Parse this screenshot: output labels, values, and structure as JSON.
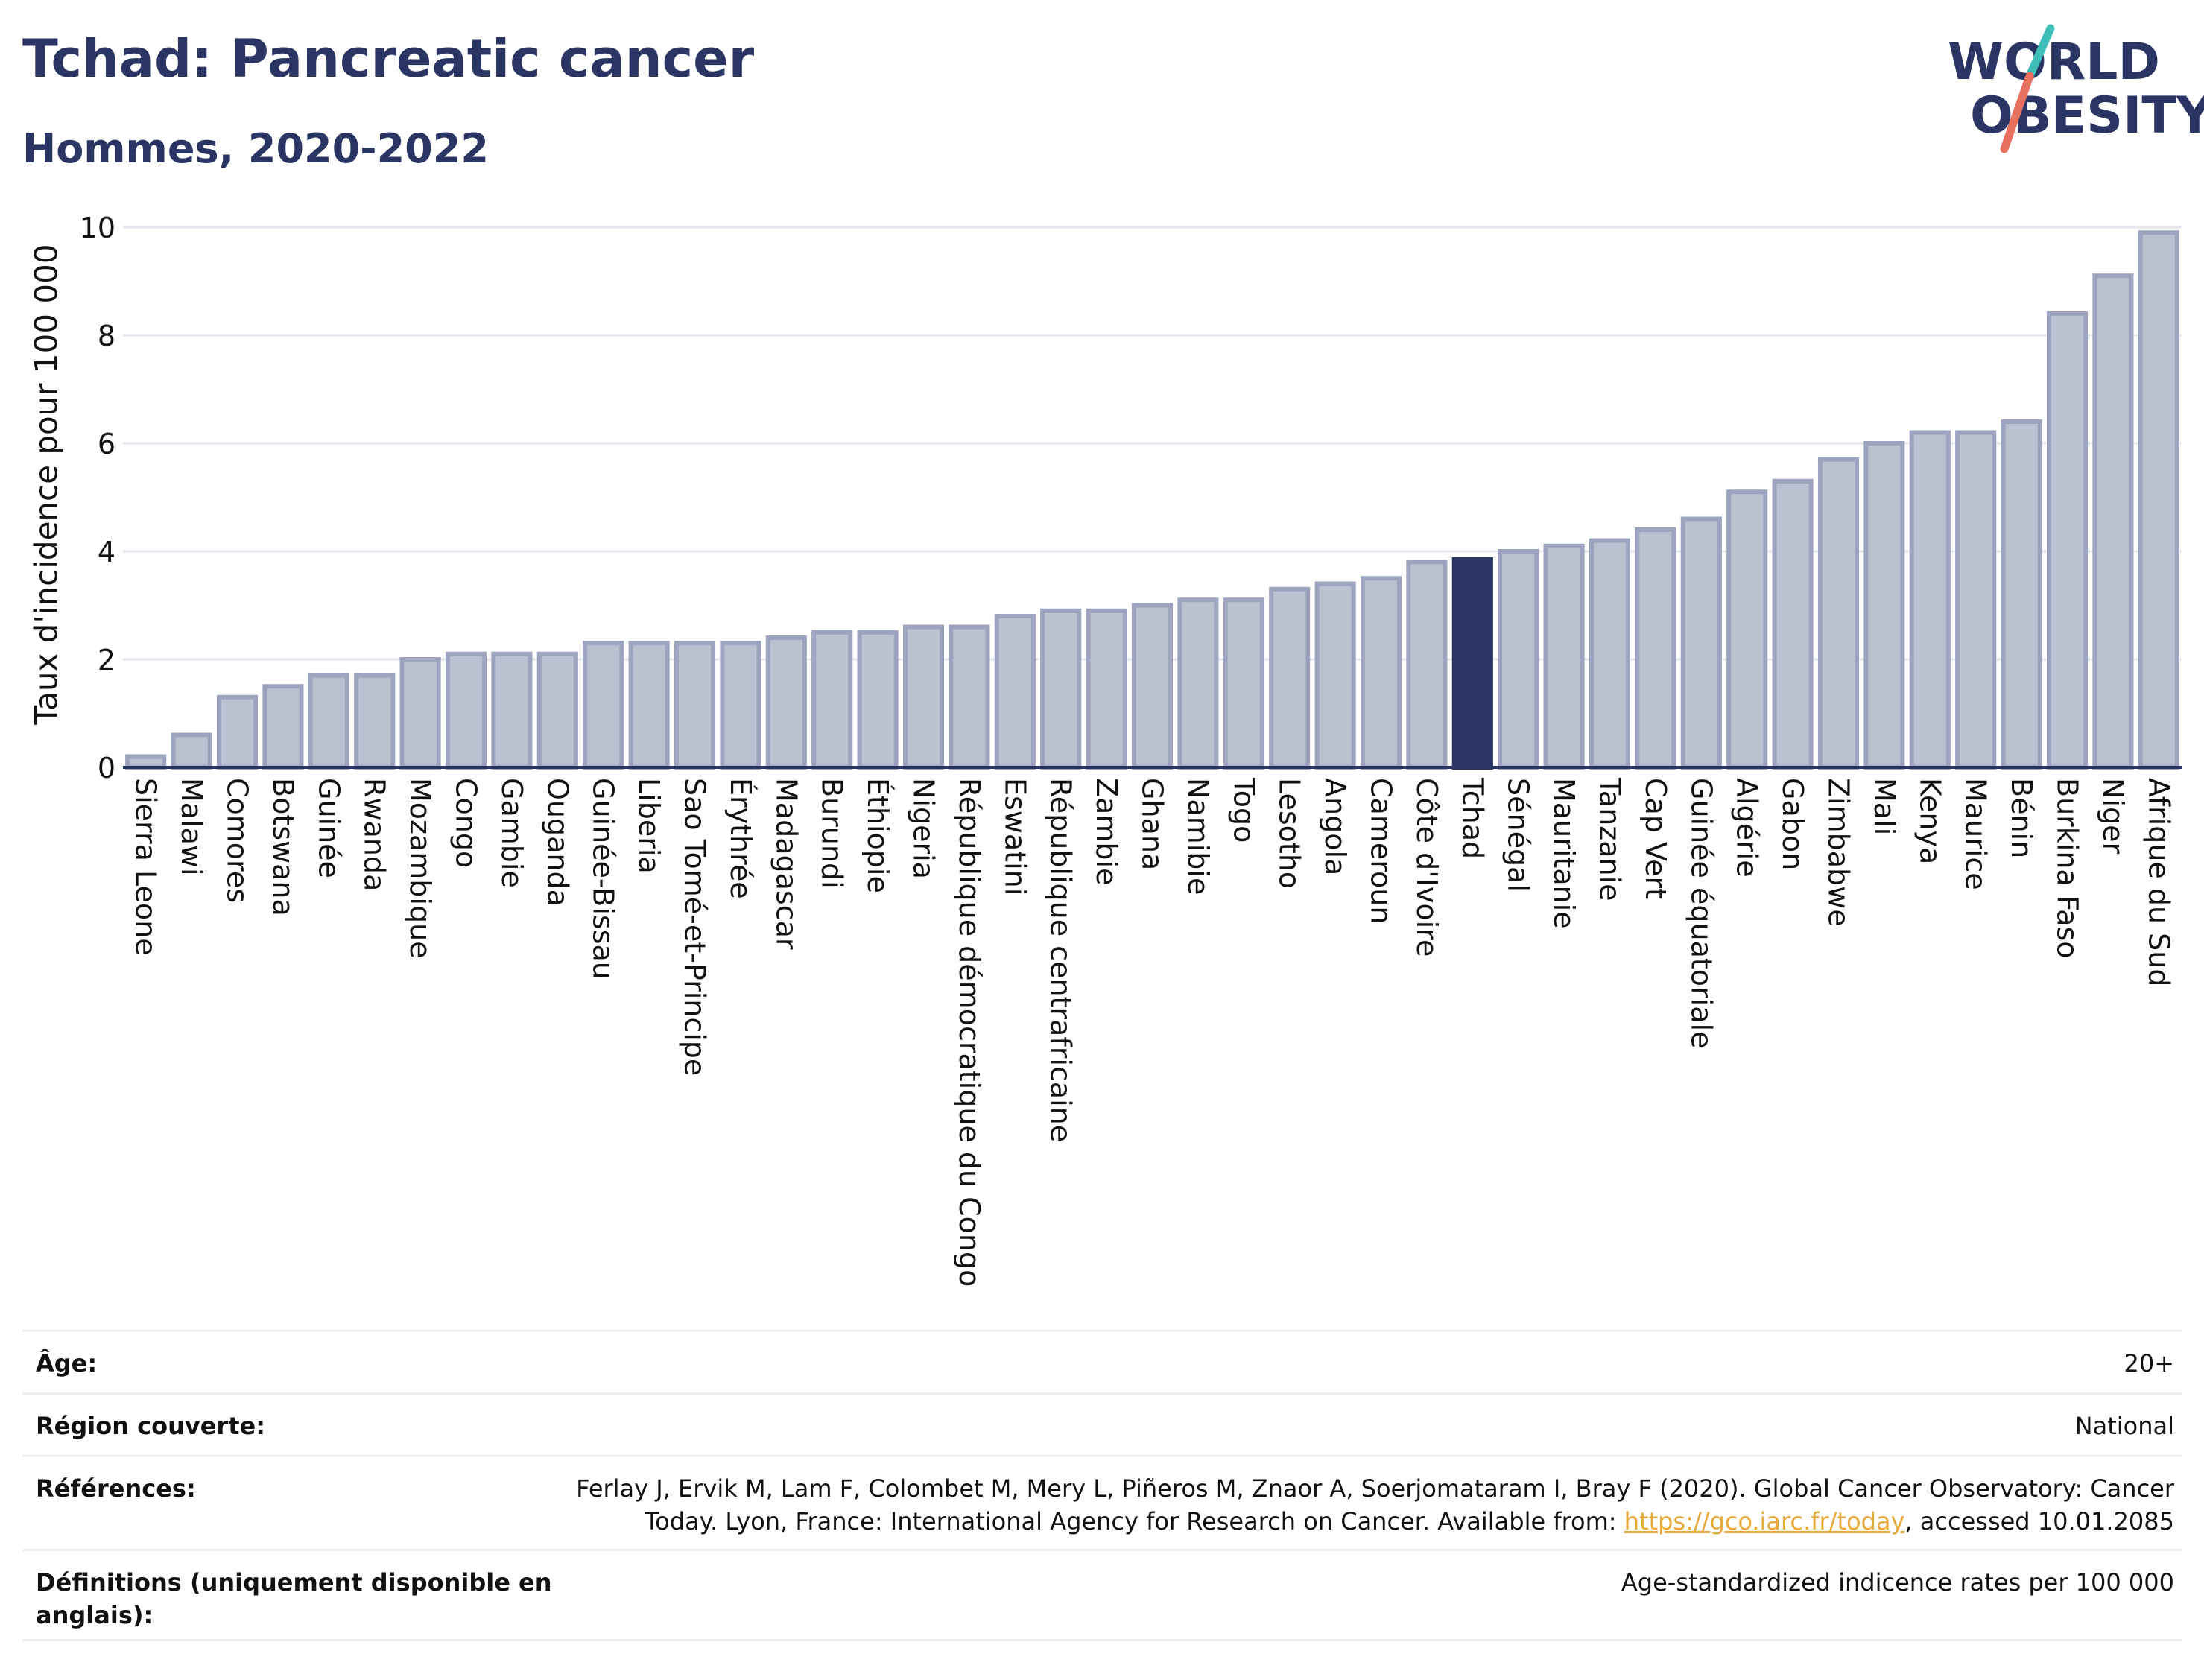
{
  "header": {
    "title": "Tchad: Pancreatic cancer",
    "subtitle": "Hommes, 2020-2022"
  },
  "logo": {
    "line1": "WORLD",
    "line2": "OBESITY",
    "colors": {
      "text": "#2a3563",
      "slash_top": "#3dbfb8",
      "slash_bottom": "#e8705f"
    }
  },
  "colors": {
    "bar_fill": "#bcc1d1",
    "bar_stroke": "#9ea4bf",
    "highlight_fill": "#2a3563",
    "gridline": "#e6e6ee",
    "axis": "#2a3563",
    "title": "#2a3563",
    "link": "#e6a93a"
  },
  "chart_data": {
    "type": "bar",
    "title": "Tchad: Pancreatic cancer",
    "subtitle": "Hommes, 2020-2022",
    "xlabel": "",
    "ylabel": "Taux d'incidence pour 100 000",
    "ylim": [
      0,
      10
    ],
    "yticks": [
      0,
      2,
      4,
      6,
      8,
      10
    ],
    "grid": true,
    "legend": "none",
    "highlight": "Tchad",
    "categories": [
      "Sierra Leone",
      "Malawi",
      "Comores",
      "Botswana",
      "Guinée",
      "Rwanda",
      "Mozambique",
      "Congo",
      "Gambie",
      "Ouganda",
      "Guinée-Bissau",
      "Liberia",
      "Sao Tomé-et-Principe",
      "Érythrée",
      "Madagascar",
      "Burundi",
      "Éthiopie",
      "Nigeria",
      "République démocratique du Congo",
      "Eswatini",
      "République centrafricaine",
      "Zambie",
      "Ghana",
      "Namibie",
      "Togo",
      "Lesotho",
      "Angola",
      "Cameroun",
      "Côte d'Ivoire",
      "Tchad",
      "Sénégal",
      "Mauritanie",
      "Tanzanie",
      "Cap Vert",
      "Guinée équatoriale",
      "Algérie",
      "Gabon",
      "Zimbabwe",
      "Mali",
      "Kenya",
      "Maurice",
      "Bénin",
      "Burkina Faso",
      "Niger",
      "Afrique du Sud"
    ],
    "values": [
      0.2,
      0.6,
      1.3,
      1.5,
      1.7,
      1.7,
      2.0,
      2.1,
      2.1,
      2.1,
      2.3,
      2.3,
      2.3,
      2.3,
      2.4,
      2.5,
      2.5,
      2.6,
      2.6,
      2.8,
      2.9,
      2.9,
      3.0,
      3.1,
      3.1,
      3.3,
      3.4,
      3.5,
      3.8,
      3.85,
      4.0,
      4.1,
      4.2,
      4.4,
      4.6,
      5.1,
      5.3,
      5.7,
      6.0,
      6.2,
      6.2,
      6.4,
      8.4,
      9.1,
      9.9
    ]
  },
  "info": {
    "rows": [
      {
        "label": "Âge:",
        "value": "20+"
      },
      {
        "label": "Région couverte:",
        "value": "National"
      },
      {
        "label": "Références:",
        "value_line1": "Ferlay J, Ervik M, Lam F, Colombet M, Mery L, Piñeros M, Znaor A, Soerjomataram I, Bray F (2020). Global Cancer Observatory: Cancer",
        "value_line2_pre": "Today. Lyon, France: International Agency for Research on Cancer. Available from: ",
        "link_text": "https://gco.iarc.fr/today",
        "value_line2_post": ", accessed 10.01.2085"
      },
      {
        "label_line1": "Définitions (uniquement disponible en",
        "label_line2": "anglais):",
        "value": "Age-standardized indicence rates per 100 000"
      }
    ]
  }
}
